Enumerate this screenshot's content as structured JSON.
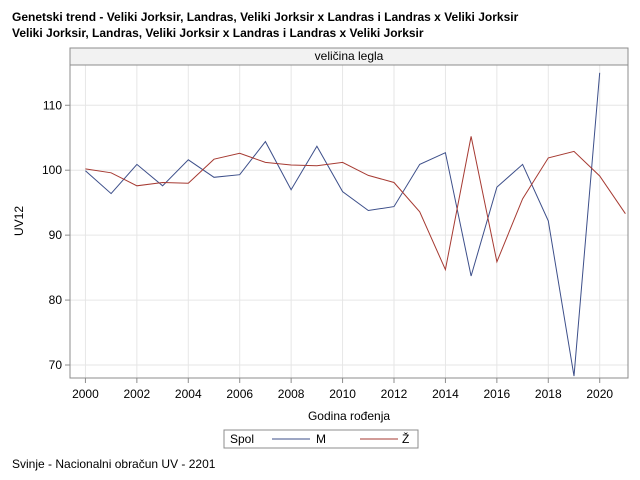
{
  "titles": {
    "line1": "Genetski trend - Veliki Jorksir, Landras, Veliki Jorksir x Landras i Landras x Veliki Jorksir",
    "line2": "Veliki Jorksir, Landras, Veliki Jorksir x Landras i Landras x Veliki Jorksir"
  },
  "footnote": "Svinje - Nacionalni obračun UV - 2201",
  "colors": {
    "M": "#3d4f8a",
    "Z": "#a63a32",
    "grid": "#e6e6e6",
    "frame": "#8c8c8c",
    "panel_header": "#f2f2f2"
  },
  "chart_data": {
    "type": "line",
    "panel_label": "veličina legla",
    "xlabel": "Godina rođenja",
    "ylabel": "UV12",
    "xlim": [
      1999.4,
      2021.1
    ],
    "ylim": [
      68.0,
      116.2
    ],
    "x_ticks": [
      2000,
      2002,
      2004,
      2006,
      2008,
      2010,
      2012,
      2014,
      2016,
      2018,
      2020
    ],
    "y_ticks": [
      70,
      80,
      90,
      100,
      110
    ],
    "grid": true,
    "legend": {
      "title": "Spol",
      "placement": "bottom"
    },
    "series": [
      {
        "name": "M",
        "x": [
          2000,
          2001,
          2002,
          2003,
          2004,
          2005,
          2006,
          2007,
          2008,
          2009,
          2010,
          2011,
          2012,
          2013,
          2014,
          2015,
          2016,
          2017,
          2018,
          2019,
          2020
        ],
        "y": [
          99.9,
          96.4,
          100.9,
          97.6,
          101.6,
          98.9,
          99.3,
          104.4,
          97.0,
          103.7,
          96.7,
          93.8,
          94.4,
          100.9,
          102.7,
          83.7,
          97.4,
          100.9,
          92.2,
          68.3,
          115.0
        ]
      },
      {
        "name": "Ž",
        "x": [
          2000,
          2001,
          2002,
          2003,
          2004,
          2005,
          2006,
          2007,
          2008,
          2009,
          2010,
          2011,
          2012,
          2013,
          2014,
          2015,
          2016,
          2017,
          2018,
          2019,
          2020,
          2021
        ],
        "y": [
          100.2,
          99.6,
          97.6,
          98.1,
          98.0,
          101.7,
          102.6,
          101.2,
          100.8,
          100.7,
          101.2,
          99.2,
          98.1,
          93.6,
          84.7,
          105.2,
          85.9,
          95.6,
          101.9,
          102.9,
          99.1,
          93.3
        ]
      }
    ]
  }
}
